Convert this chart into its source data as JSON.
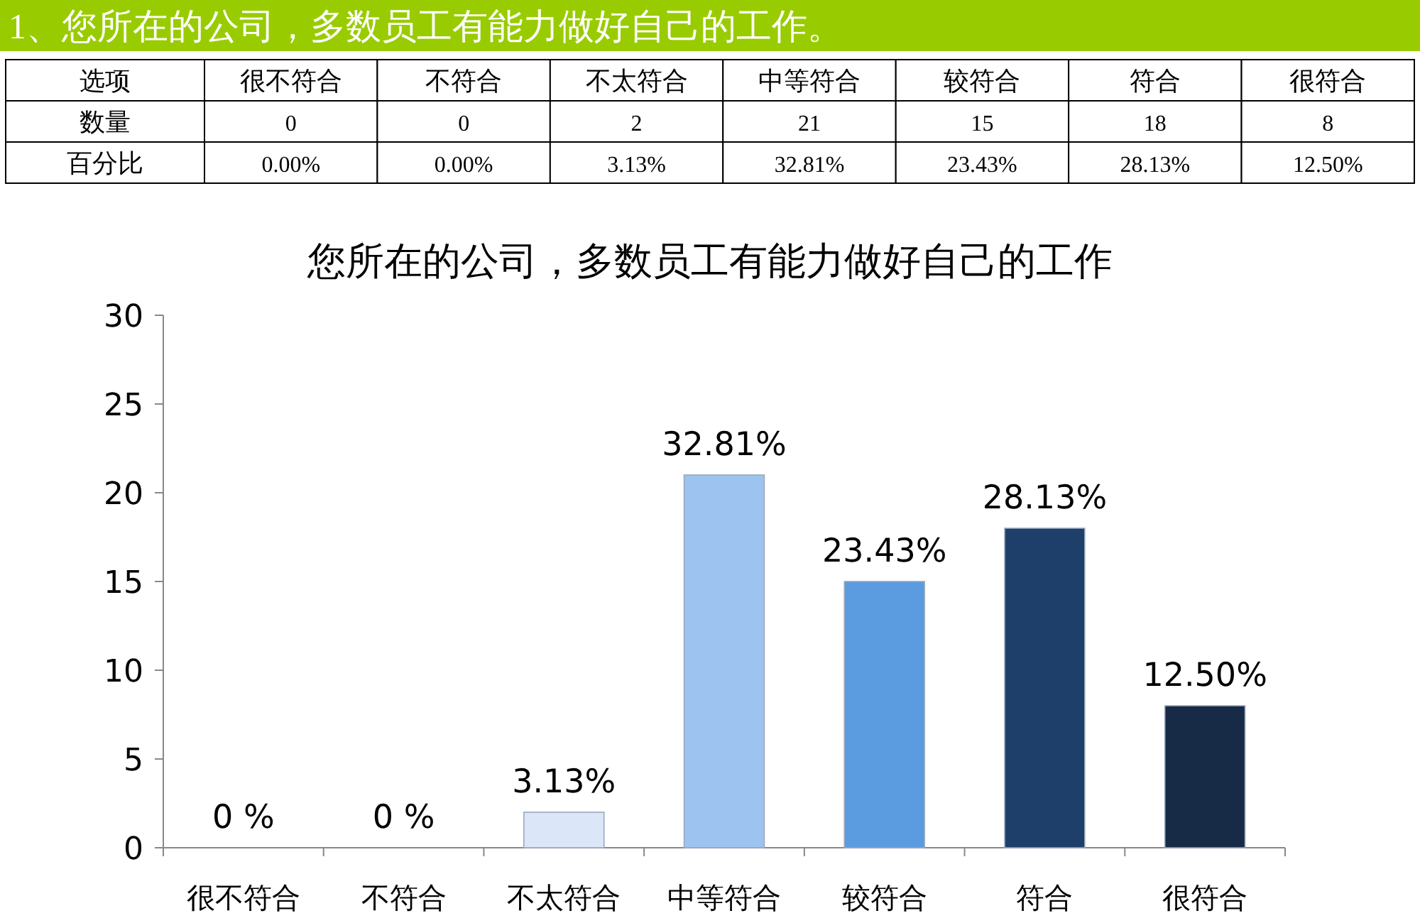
{
  "chart_data": [
    {
      "type": "other",
      "title": "1、您所在的公司，多数员工有能力做好自己的工作。",
      "categories": [
        "很不符合",
        "不符合",
        "不太符合",
        "中等符合",
        "较符合",
        "符合",
        "很符合"
      ],
      "annotations": [
        "选项",
        "数量",
        "0",
        "0",
        "2",
        "21",
        "15",
        "18",
        "8",
        "百分比",
        "0.00%",
        "0.00%",
        "3.13%",
        "32.81%",
        "23.43%",
        "28.13%",
        "12.50%"
      ]
    },
    {
      "type": "bar",
      "title": "您所在的公司，多数员工有能力做好自己的工作",
      "categories": [
        "很不符合",
        "不符合",
        "不太符合",
        "中等符合",
        "较符合",
        "符合",
        "很符合"
      ],
      "values": [
        0,
        0,
        2,
        21,
        15,
        18,
        8
      ],
      "colors": [
        "#c6d9f1",
        "#c6d9f1",
        "#dbe6f8",
        "#9dc3f0",
        "#5b9be0",
        "#1f3f6b",
        "#172b47"
      ],
      "annotations": [
        {
          "text": "0 %",
          "x": "很不符合",
          "y": 0
        },
        {
          "text": "0 %",
          "x": "不符合",
          "y": 0
        },
        {
          "text": "3.13%",
          "x": "不太符合",
          "y": 2
        },
        {
          "text": "32.81%",
          "x": "中等符合",
          "y": 21
        },
        {
          "text": "23.43%",
          "x": "较符合",
          "y": 15
        },
        {
          "text": "28.13%",
          "x": "符合",
          "y": 18
        },
        {
          "text": "12.50%",
          "x": "很符合",
          "y": 8
        }
      ],
      "ylim": [
        0,
        30
      ],
      "yticks": [
        0,
        5,
        10,
        15,
        20,
        25,
        30
      ],
      "grid": false
    }
  ]
}
